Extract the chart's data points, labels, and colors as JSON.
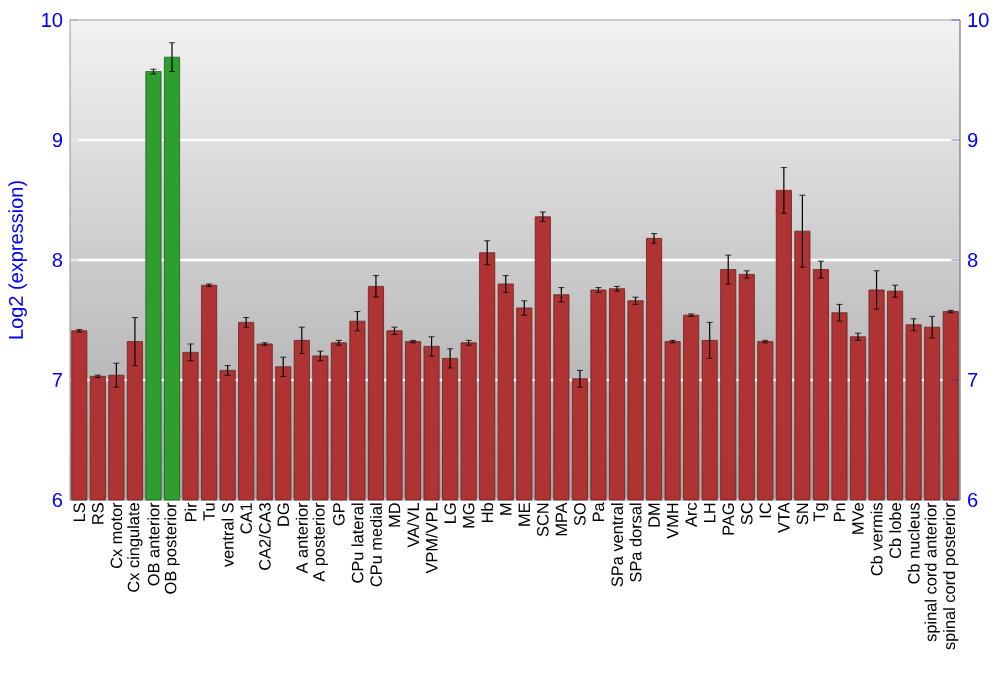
{
  "chart_data": {
    "type": "bar",
    "ylabel": "Log2 (expression)",
    "categories": [
      "LS",
      "RS",
      "Cx motor",
      "Cx cingulate",
      "OB anterior",
      "OB posterior",
      "Pir",
      "Tu",
      "ventral S",
      "CA1",
      "CA2/CA3",
      "DG",
      "A anterior",
      "A posterior",
      "GP",
      "CPu lateral",
      "CPu medial",
      "MD",
      "VA/VL",
      "VPM/VPL",
      "LG",
      "MG",
      "Hb",
      "M",
      "ME",
      "SCN",
      "MPA",
      "SO",
      "Pa",
      "SPa ventral",
      "SPa dorsal",
      "DM",
      "VMH",
      "Arc",
      "LH",
      "PAG",
      "SC",
      "IC",
      "VTA",
      "SN",
      "Tg",
      "Pn",
      "MVe",
      "Cb vermis",
      "Cb lobe",
      "Cb nucleus",
      "spinal cord anterior",
      "spinal cord posterior"
    ],
    "values": [
      7.41,
      7.03,
      7.04,
      7.32,
      9.57,
      9.69,
      7.23,
      7.79,
      7.08,
      7.48,
      7.3,
      7.11,
      7.33,
      7.2,
      7.31,
      7.49,
      7.78,
      7.41,
      7.32,
      7.28,
      7.18,
      7.31,
      8.06,
      7.8,
      7.6,
      8.36,
      7.71,
      7.01,
      7.75,
      7.76,
      7.66,
      8.18,
      7.32,
      7.54,
      7.33,
      7.92,
      7.88,
      7.32,
      8.58,
      8.24,
      7.92,
      7.56,
      7.36,
      7.75,
      7.74,
      7.46,
      7.44,
      7.57
    ],
    "errors": [
      0.01,
      0.01,
      0.1,
      0.2,
      0.02,
      0.12,
      0.07,
      0.01,
      0.04,
      0.04,
      0.01,
      0.08,
      0.11,
      0.04,
      0.02,
      0.08,
      0.09,
      0.03,
      0.01,
      0.08,
      0.08,
      0.02,
      0.1,
      0.07,
      0.06,
      0.04,
      0.06,
      0.07,
      0.02,
      0.02,
      0.03,
      0.04,
      0.01,
      0.01,
      0.15,
      0.12,
      0.03,
      0.01,
      0.19,
      0.3,
      0.07,
      0.07,
      0.03,
      0.16,
      0.05,
      0.05,
      0.09,
      0.01
    ],
    "colors": [
      "#b03333",
      "#b03333",
      "#b03333",
      "#b03333",
      "#2e9e2e",
      "#2e9e2e",
      "#b03333",
      "#b03333",
      "#b03333",
      "#b03333",
      "#b03333",
      "#b03333",
      "#b03333",
      "#b03333",
      "#b03333",
      "#b03333",
      "#b03333",
      "#b03333",
      "#b03333",
      "#b03333",
      "#b03333",
      "#b03333",
      "#b03333",
      "#b03333",
      "#b03333",
      "#b03333",
      "#b03333",
      "#b03333",
      "#b03333",
      "#b03333",
      "#b03333",
      "#b03333",
      "#b03333",
      "#b03333",
      "#b03333",
      "#b03333",
      "#b03333",
      "#b03333",
      "#b03333",
      "#b03333",
      "#b03333",
      "#b03333",
      "#b03333",
      "#b03333",
      "#b03333",
      "#b03333",
      "#b03333",
      "#b03333"
    ],
    "ylim": [
      6,
      10
    ],
    "yticks": [
      6,
      7,
      8,
      9,
      10
    ],
    "y2lim": [
      6,
      10
    ],
    "y2ticks": [
      6,
      7,
      8,
      9,
      10
    ],
    "grid": "y"
  }
}
